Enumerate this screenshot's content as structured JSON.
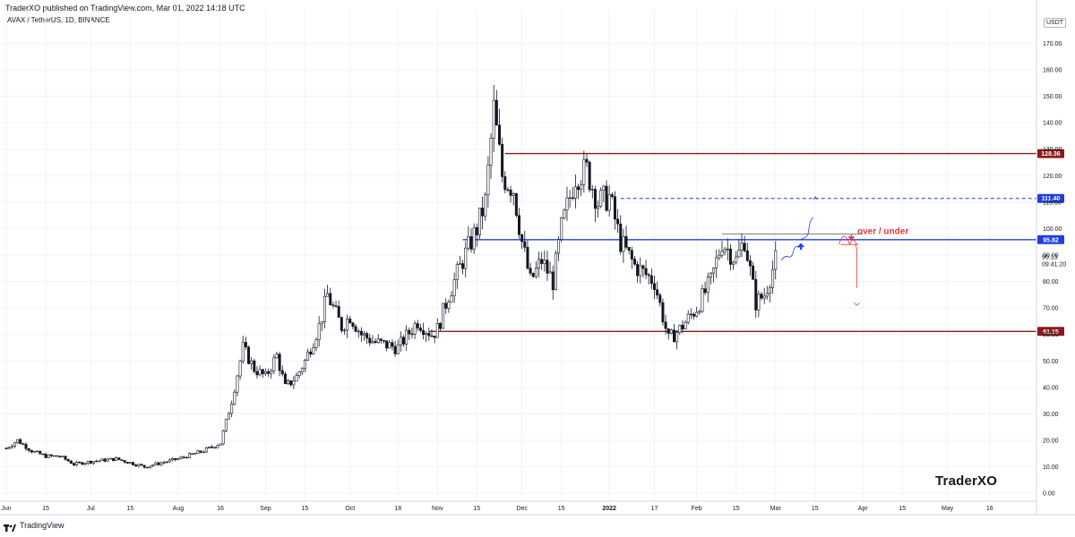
{
  "header": {
    "publisher": "TraderXO published on TradingView.com, Mar 01, 2022 14:18 UTC",
    "symbol": "AVAX / TetherUS, 1D, BINANCE"
  },
  "footer": {
    "brand": "TradingView"
  },
  "watermark": "TraderXO",
  "unit_badge": "USDT",
  "colors": {
    "candle": "#131722",
    "resistance": "#8b1a1a",
    "key_level": "#1e3fe0",
    "target": "#1e3fe0",
    "annotation_red": "#e53935",
    "annotation_blue": "#1e3fe0",
    "grid": "#f0f3fa",
    "axis_border": "#d1d4dc"
  },
  "chart_data": {
    "type": "candlestick",
    "title": "AVAX / TetherUS, 1D, BINANCE",
    "ylim": [
      -3,
      183
    ],
    "xlim": [
      "2021-06-01",
      "2022-05-31"
    ],
    "y_ticks": [
      0,
      10,
      20,
      30,
      40,
      50,
      60,
      70,
      80,
      90,
      100,
      110,
      120,
      130,
      140,
      150,
      160,
      170
    ],
    "y_tick_labels": [
      "0.00",
      "10.00",
      "20.00",
      "30.00",
      "40.00",
      "50.00",
      "60.00",
      "70.00",
      "80.00",
      "90.00",
      "100.00",
      "110.00",
      "120.00",
      "130.00",
      "140.00",
      "150.00",
      "160.00",
      "170.00"
    ],
    "x_ticks": [
      {
        "label": "Jun",
        "date": "2021-06-01"
      },
      {
        "label": "15",
        "date": "2021-06-15"
      },
      {
        "label": "Jul",
        "date": "2021-07-01"
      },
      {
        "label": "15",
        "date": "2021-07-15"
      },
      {
        "label": "Aug",
        "date": "2021-08-01"
      },
      {
        "label": "16",
        "date": "2021-08-16"
      },
      {
        "label": "Sep",
        "date": "2021-09-01"
      },
      {
        "label": "15",
        "date": "2021-09-15"
      },
      {
        "label": "Oct",
        "date": "2021-10-01"
      },
      {
        "label": "18",
        "date": "2021-10-18"
      },
      {
        "label": "Nov",
        "date": "2021-11-01"
      },
      {
        "label": "15",
        "date": "2021-11-15"
      },
      {
        "label": "Dec",
        "date": "2021-12-01"
      },
      {
        "label": "15",
        "date": "2021-12-15"
      },
      {
        "label": "2022",
        "date": "2022-01-01"
      },
      {
        "label": "17",
        "date": "2022-01-17"
      },
      {
        "label": "Feb",
        "date": "2022-02-01"
      },
      {
        "label": "15",
        "date": "2022-02-15"
      },
      {
        "label": "Mar",
        "date": "2022-03-01"
      },
      {
        "label": "15",
        "date": "2022-03-15"
      },
      {
        "label": "Apr",
        "date": "2022-04-01"
      },
      {
        "label": "15",
        "date": "2022-04-15"
      },
      {
        "label": "May",
        "date": "2022-05-01"
      },
      {
        "label": "16",
        "date": "2022-05-16"
      }
    ],
    "price_path": [
      {
        "date": "2021-06-01",
        "close": 17
      },
      {
        "date": "2021-06-05",
        "close": 20
      },
      {
        "date": "2021-06-10",
        "close": 16
      },
      {
        "date": "2021-06-15",
        "close": 14
      },
      {
        "date": "2021-06-20",
        "close": 14
      },
      {
        "date": "2021-06-25",
        "close": 11
      },
      {
        "date": "2021-07-01",
        "close": 12
      },
      {
        "date": "2021-07-10",
        "close": 13
      },
      {
        "date": "2021-07-20",
        "close": 10
      },
      {
        "date": "2021-08-01",
        "close": 13
      },
      {
        "date": "2021-08-10",
        "close": 16
      },
      {
        "date": "2021-08-16",
        "close": 19
      },
      {
        "date": "2021-08-20",
        "close": 35
      },
      {
        "date": "2021-08-24",
        "close": 55
      },
      {
        "date": "2021-08-28",
        "close": 47
      },
      {
        "date": "2021-09-01",
        "close": 44
      },
      {
        "date": "2021-09-05",
        "close": 52
      },
      {
        "date": "2021-09-08",
        "close": 40
      },
      {
        "date": "2021-09-12",
        "close": 44
      },
      {
        "date": "2021-09-15",
        "close": 50
      },
      {
        "date": "2021-09-20",
        "close": 63
      },
      {
        "date": "2021-09-23",
        "close": 75
      },
      {
        "date": "2021-09-25",
        "close": 70
      },
      {
        "date": "2021-09-28",
        "close": 63
      },
      {
        "date": "2021-10-01",
        "close": 67
      },
      {
        "date": "2021-10-05",
        "close": 60
      },
      {
        "date": "2021-10-10",
        "close": 57
      },
      {
        "date": "2021-10-18",
        "close": 55
      },
      {
        "date": "2021-10-25",
        "close": 65
      },
      {
        "date": "2021-10-30",
        "close": 60
      },
      {
        "date": "2021-11-01",
        "close": 62
      },
      {
        "date": "2021-11-05",
        "close": 75
      },
      {
        "date": "2021-11-10",
        "close": 88
      },
      {
        "date": "2021-11-15",
        "close": 100
      },
      {
        "date": "2021-11-18",
        "close": 110
      },
      {
        "date": "2021-11-21",
        "close": 145
      },
      {
        "date": "2021-11-24",
        "close": 120
      },
      {
        "date": "2021-11-28",
        "close": 115
      },
      {
        "date": "2021-12-01",
        "close": 95
      },
      {
        "date": "2021-12-04",
        "close": 80
      },
      {
        "date": "2021-12-08",
        "close": 88
      },
      {
        "date": "2021-12-12",
        "close": 80
      },
      {
        "date": "2021-12-15",
        "close": 100
      },
      {
        "date": "2021-12-20",
        "close": 120
      },
      {
        "date": "2021-12-24",
        "close": 122
      },
      {
        "date": "2021-12-28",
        "close": 110
      },
      {
        "date": "2022-01-01",
        "close": 112
      },
      {
        "date": "2022-01-05",
        "close": 95
      },
      {
        "date": "2022-01-10",
        "close": 86
      },
      {
        "date": "2022-01-17",
        "close": 80
      },
      {
        "date": "2022-01-22",
        "close": 58
      },
      {
        "date": "2022-01-26",
        "close": 62
      },
      {
        "date": "2022-02-01",
        "close": 70
      },
      {
        "date": "2022-02-06",
        "close": 80
      },
      {
        "date": "2022-02-10",
        "close": 95
      },
      {
        "date": "2022-02-15",
        "close": 88
      },
      {
        "date": "2022-02-18",
        "close": 96
      },
      {
        "date": "2022-02-22",
        "close": 72
      },
      {
        "date": "2022-02-25",
        "close": 75
      },
      {
        "date": "2022-03-01",
        "close": 88
      }
    ],
    "horizontal_levels": [
      {
        "value": 128.36,
        "label": "128.36",
        "color": "#8b1a1a",
        "style": "solid",
        "from": "2021-11-25",
        "to": "2022-05-31"
      },
      {
        "value": 111.4,
        "label": "111.40",
        "color": "#1e3fe0",
        "style": "dashed",
        "from": "2022-01-05",
        "to": "2022-05-31"
      },
      {
        "value": 95.82,
        "label": "95.82",
        "color": "#1e3fe0",
        "style": "solid",
        "from": "2021-11-10",
        "to": "2022-05-31"
      },
      {
        "value": 61.15,
        "label": "61.15",
        "color": "#8b1a1a",
        "style": "solid",
        "from": "2021-10-29",
        "to": "2022-05-31"
      }
    ],
    "resistance_gray": {
      "value": 98,
      "from": "2022-02-10",
      "to": "2022-04-01"
    },
    "current_price": "90.13",
    "countdown": "09:41:20",
    "annotations": [
      {
        "text": "over / under"
      }
    ],
    "grid": true
  }
}
